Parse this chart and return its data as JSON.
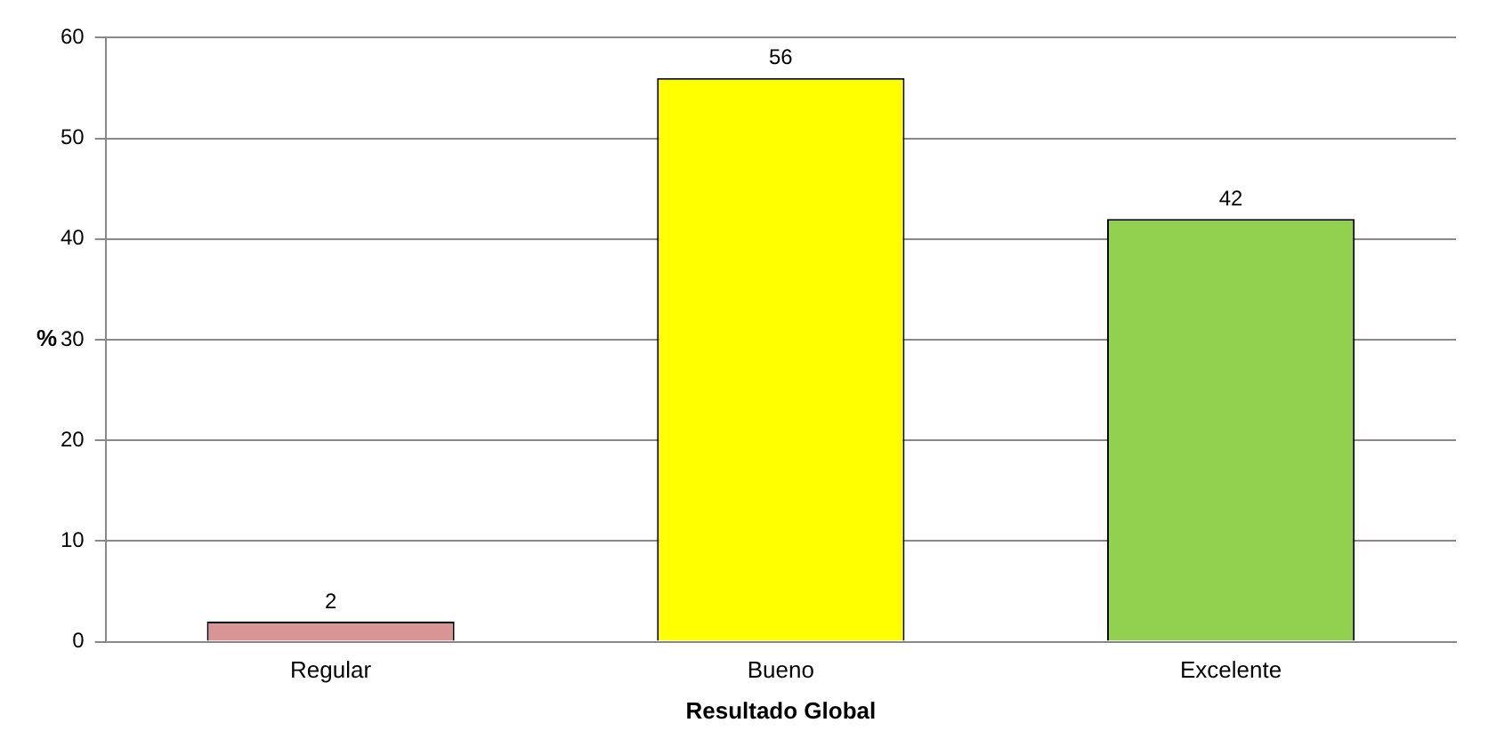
{
  "chart_data": {
    "type": "bar",
    "xlabel": "Resultado Global",
    "ylabel": "%",
    "categories": [
      "Regular",
      "Bueno",
      "Excelente"
    ],
    "values": [
      2,
      56,
      42
    ],
    "colors": [
      "#d99594",
      "#ffff00",
      "#92d050"
    ],
    "ylim": [
      0,
      60
    ],
    "yticks": [
      0,
      10,
      20,
      30,
      40,
      50,
      60
    ],
    "grid": "y",
    "data_labels": true,
    "legend": false
  }
}
